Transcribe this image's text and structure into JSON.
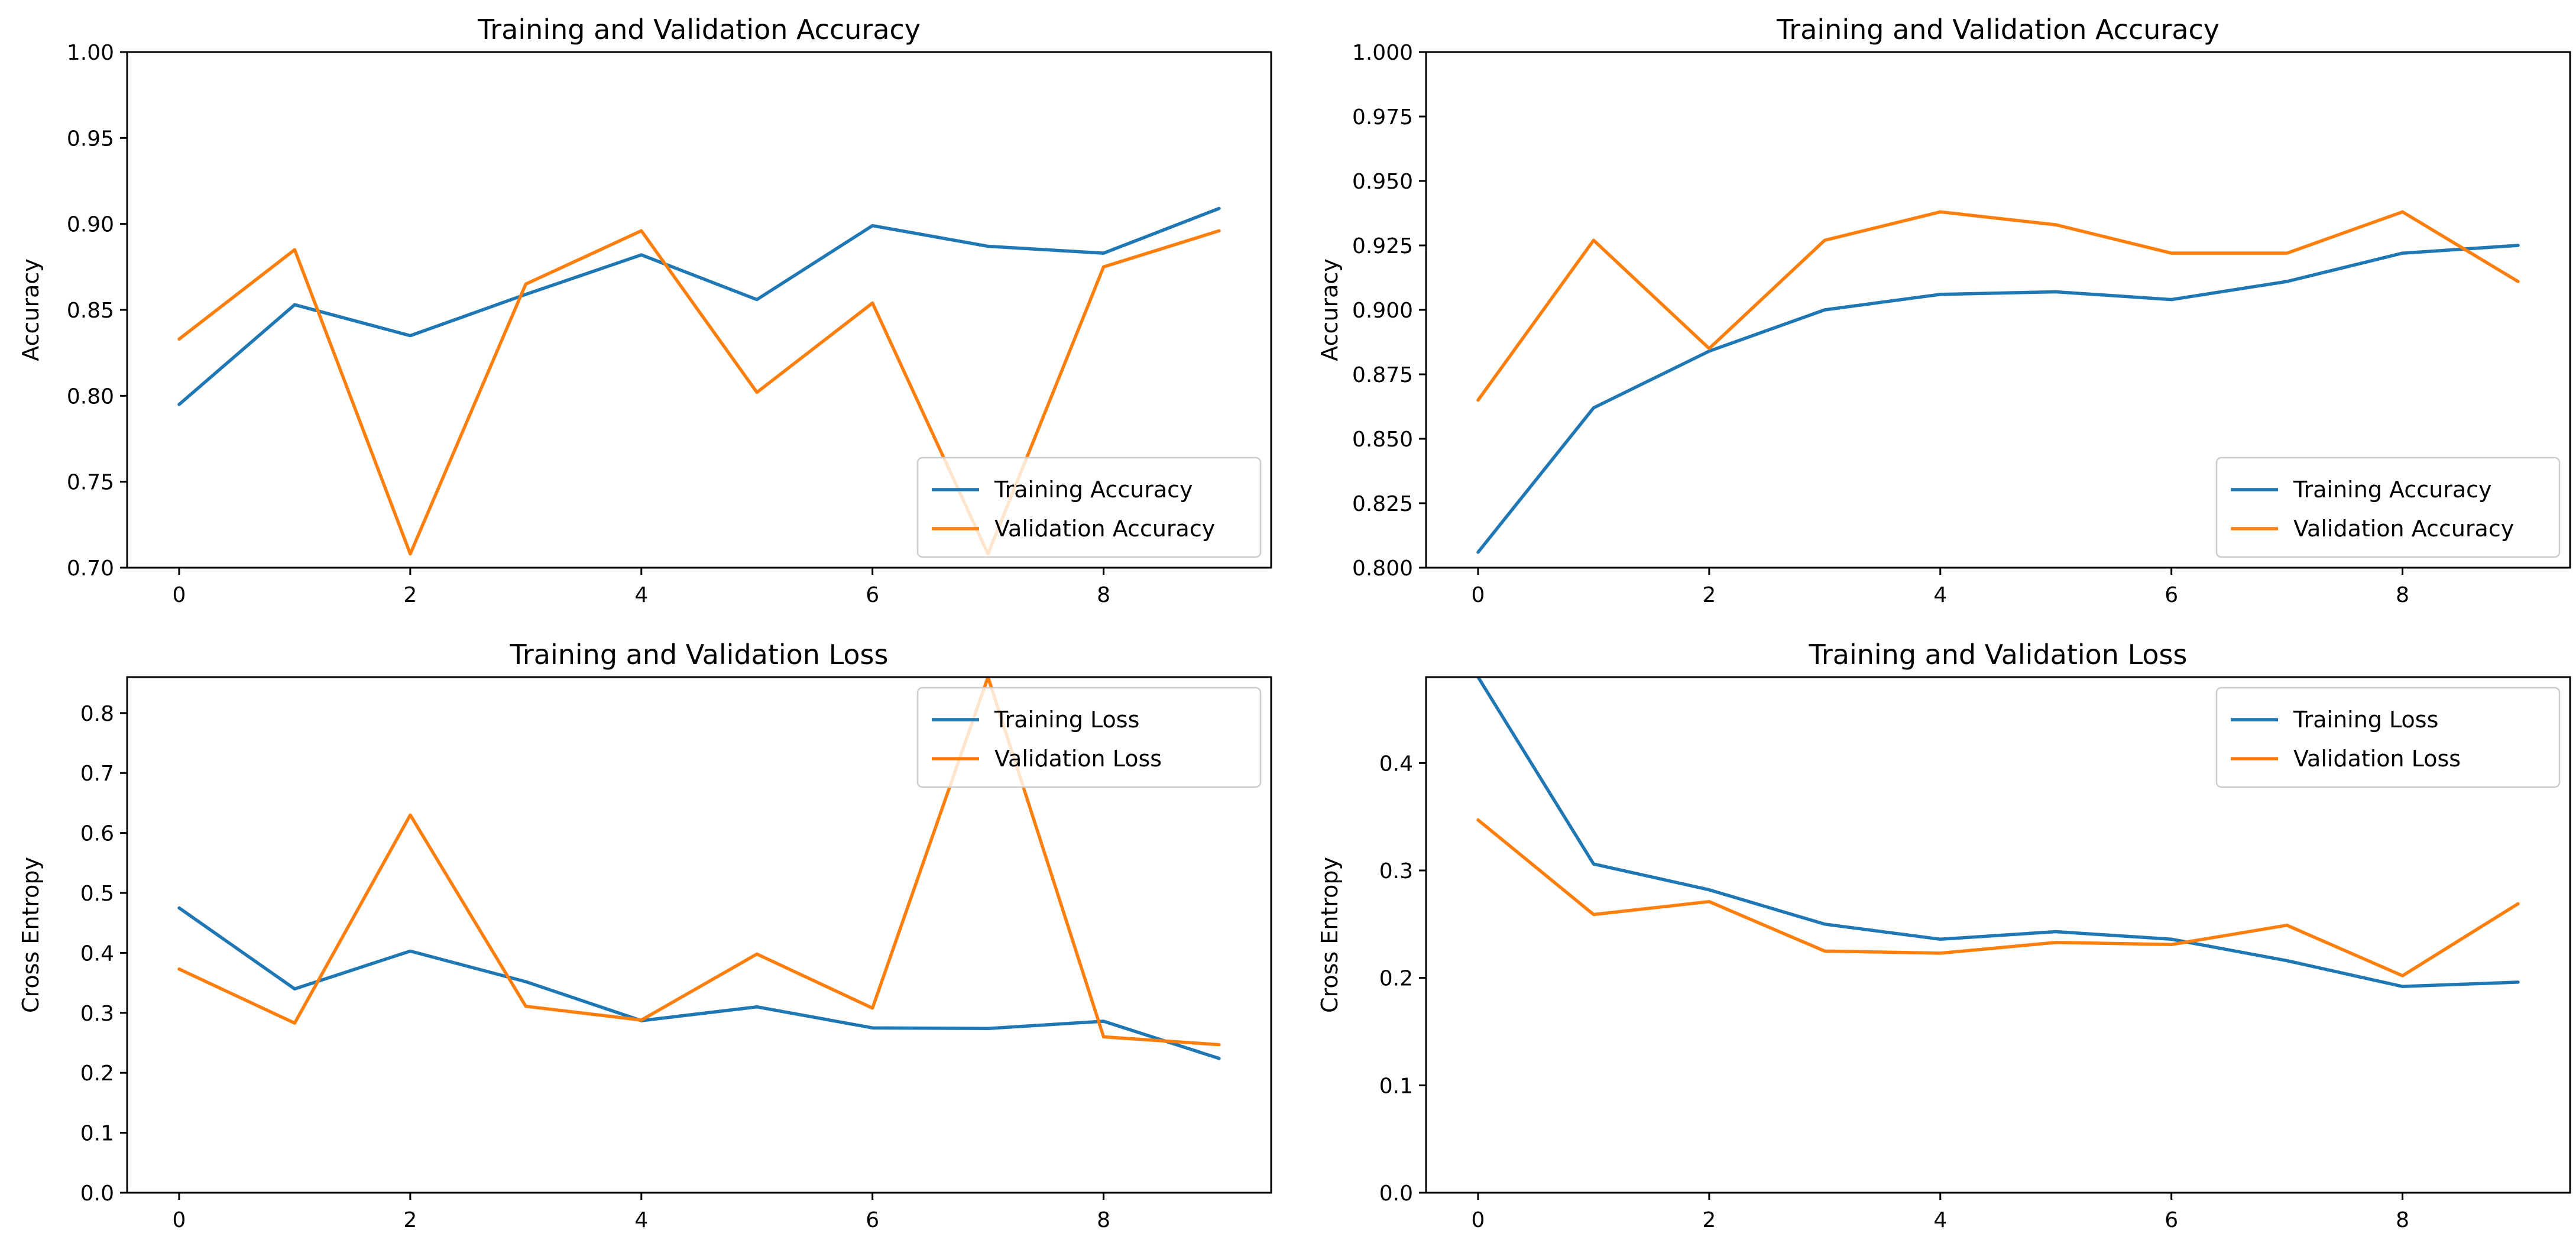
{
  "colors": {
    "training": "#1f77b4",
    "validation": "#ff7f0e"
  },
  "chart_data": [
    {
      "type": "line",
      "title": "Training and Validation Accuracy",
      "xlabel": "",
      "ylabel": "Accuracy",
      "xlim": [
        -0.45,
        9.45
      ],
      "ylim": [
        0.7,
        1.0
      ],
      "xticks": [
        0,
        2,
        4,
        6,
        8
      ],
      "xtick_labels": [
        "0",
        "2",
        "4",
        "6",
        "8"
      ],
      "yticks": [
        0.7,
        0.75,
        0.8,
        0.85,
        0.9,
        0.95,
        1.0
      ],
      "ytick_labels": [
        "0.70",
        "0.75",
        "0.80",
        "0.85",
        "0.90",
        "0.95",
        "1.00"
      ],
      "legend_position": "lower-right",
      "x": [
        0,
        1,
        2,
        3,
        4,
        5,
        6,
        7,
        8,
        9
      ],
      "series": [
        {
          "name": "Training Accuracy",
          "color": "#1f77b4",
          "values": [
            0.795,
            0.853,
            0.835,
            0.859,
            0.882,
            0.856,
            0.899,
            0.887,
            0.883,
            0.909
          ]
        },
        {
          "name": "Validation Accuracy",
          "color": "#ff7f0e",
          "values": [
            0.833,
            0.885,
            0.708,
            0.865,
            0.896,
            0.802,
            0.854,
            0.708,
            0.875,
            0.896
          ]
        }
      ]
    },
    {
      "type": "line",
      "title": "Training and Validation Accuracy",
      "xlabel": "",
      "ylabel": "Accuracy",
      "xlim": [
        -0.45,
        9.45
      ],
      "ylim": [
        0.8,
        1.0
      ],
      "xticks": [
        0,
        2,
        4,
        6,
        8
      ],
      "xtick_labels": [
        "0",
        "2",
        "4",
        "6",
        "8"
      ],
      "yticks": [
        0.8,
        0.825,
        0.85,
        0.875,
        0.9,
        0.925,
        0.95,
        0.975,
        1.0
      ],
      "ytick_labels": [
        "0.800",
        "0.825",
        "0.850",
        "0.875",
        "0.900",
        "0.925",
        "0.950",
        "0.975",
        "1.000"
      ],
      "legend_position": "lower-right",
      "x": [
        0,
        1,
        2,
        3,
        4,
        5,
        6,
        7,
        8,
        9
      ],
      "series": [
        {
          "name": "Training Accuracy",
          "color": "#1f77b4",
          "values": [
            0.806,
            0.862,
            0.884,
            0.9,
            0.906,
            0.907,
            0.904,
            0.911,
            0.922,
            0.925
          ]
        },
        {
          "name": "Validation Accuracy",
          "color": "#ff7f0e",
          "values": [
            0.865,
            0.927,
            0.885,
            0.927,
            0.938,
            0.933,
            0.922,
            0.922,
            0.938,
            0.911
          ]
        }
      ]
    },
    {
      "type": "line",
      "title": "Training and Validation Loss",
      "xlabel": "",
      "ylabel": "Cross Entropy",
      "xlim": [
        -0.45,
        9.45
      ],
      "ylim": [
        0.0,
        0.86
      ],
      "xticks": [
        0,
        2,
        4,
        6,
        8
      ],
      "xtick_labels": [
        "0",
        "2",
        "4",
        "6",
        "8"
      ],
      "yticks": [
        0.0,
        0.1,
        0.2,
        0.3,
        0.4,
        0.5,
        0.6,
        0.7,
        0.8
      ],
      "ytick_labels": [
        "0.0",
        "0.1",
        "0.2",
        "0.3",
        "0.4",
        "0.5",
        "0.6",
        "0.7",
        "0.8"
      ],
      "legend_position": "upper-right",
      "x": [
        0,
        1,
        2,
        3,
        4,
        5,
        6,
        7,
        8,
        9
      ],
      "series": [
        {
          "name": "Training Loss",
          "color": "#1f77b4",
          "values": [
            0.475,
            0.34,
            0.403,
            0.352,
            0.287,
            0.31,
            0.275,
            0.274,
            0.286,
            0.224
          ]
        },
        {
          "name": "Validation Loss",
          "color": "#ff7f0e",
          "values": [
            0.373,
            0.283,
            0.63,
            0.311,
            0.288,
            0.398,
            0.308,
            0.86,
            0.26,
            0.247
          ]
        }
      ]
    },
    {
      "type": "line",
      "title": "Training and Validation Loss",
      "xlabel": "",
      "ylabel": "Cross Entropy",
      "xlim": [
        -0.45,
        9.45
      ],
      "ylim": [
        0.0,
        0.48
      ],
      "xticks": [
        0,
        2,
        4,
        6,
        8
      ],
      "xtick_labels": [
        "0",
        "2",
        "4",
        "6",
        "8"
      ],
      "yticks": [
        0.0,
        0.1,
        0.2,
        0.3,
        0.4
      ],
      "ytick_labels": [
        "0.0",
        "0.1",
        "0.2",
        "0.3",
        "0.4"
      ],
      "legend_position": "upper-right",
      "x": [
        0,
        1,
        2,
        3,
        4,
        5,
        6,
        7,
        8,
        9
      ],
      "series": [
        {
          "name": "Training Loss",
          "color": "#1f77b4",
          "values": [
            0.48,
            0.306,
            0.282,
            0.25,
            0.236,
            0.243,
            0.236,
            0.216,
            0.192,
            0.196
          ]
        },
        {
          "name": "Validation Loss",
          "color": "#ff7f0e",
          "values": [
            0.347,
            0.259,
            0.271,
            0.225,
            0.223,
            0.233,
            0.231,
            0.249,
            0.202,
            0.269
          ]
        }
      ]
    }
  ]
}
